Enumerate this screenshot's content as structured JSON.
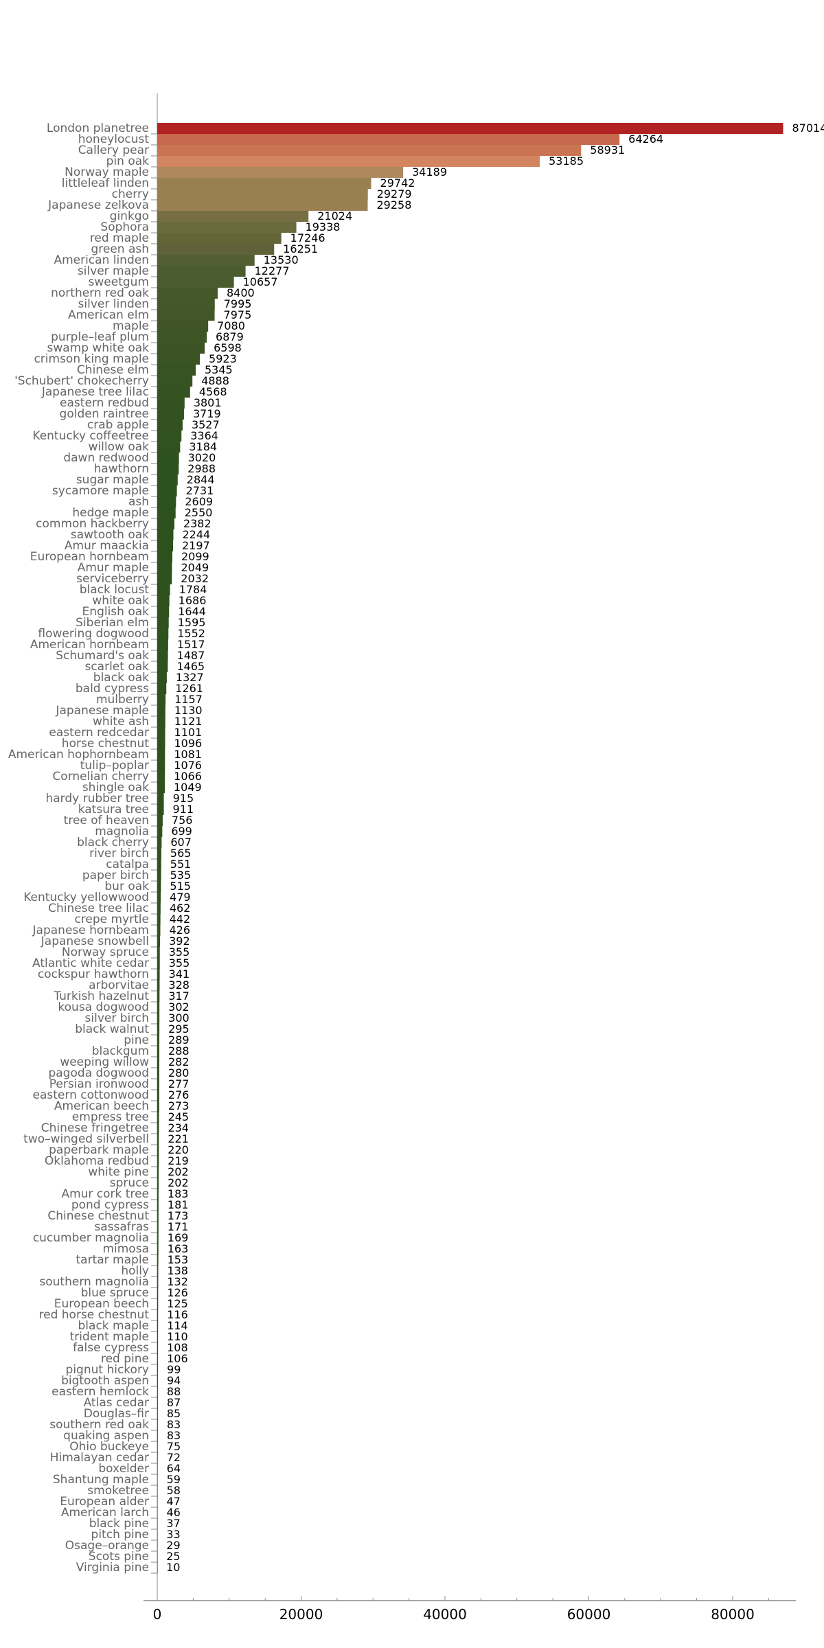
{
  "chart_data": {
    "type": "bar",
    "orientation": "horizontal",
    "title": "",
    "xlabel": "",
    "ylabel": "",
    "xlim": [
      0,
      88000
    ],
    "x_ticks": [
      0,
      20000,
      40000,
      60000,
      80000
    ],
    "x_tick_labels": [
      "0",
      "20000",
      "40000",
      "60000",
      "80000"
    ],
    "grid": false,
    "data_labels": true,
    "categories": [
      "London planetree",
      "honeylocust",
      "Callery pear",
      "pin oak",
      "Norway maple",
      "littleleaf linden",
      "cherry",
      "Japanese zelkova",
      "ginkgo",
      "Sophora",
      "red maple",
      "green ash",
      "American linden",
      "silver maple",
      "sweetgum",
      "northern red oak",
      "silver linden",
      "American elm",
      "maple",
      "purple–leaf plum",
      "swamp white oak",
      "crimson king maple",
      "Chinese elm",
      "'Schubert' chokecherry",
      "Japanese tree lilac",
      "eastern redbud",
      "golden raintree",
      "crab apple",
      "Kentucky coffeetree",
      "willow oak",
      "dawn redwood",
      "hawthorn",
      "sugar maple",
      "sycamore maple",
      "ash",
      "hedge maple",
      "common hackberry",
      "sawtooth oak",
      "Amur maackia",
      "European hornbeam",
      "Amur maple",
      "serviceberry",
      "black locust",
      "white oak",
      "English oak",
      "Siberian elm",
      "flowering dogwood",
      "American hornbeam",
      "Schumard's oak",
      "scarlet oak",
      "black oak",
      "bald cypress",
      "mulberry",
      "Japanese maple",
      "white ash",
      "eastern redcedar",
      "horse chestnut",
      "American hophornbeam",
      "tulip–poplar",
      "Cornelian cherry",
      "shingle oak",
      "hardy rubber tree",
      "katsura tree",
      "tree of heaven",
      "magnolia",
      "black cherry",
      "river birch",
      "catalpa",
      "paper birch",
      "bur oak",
      "Kentucky yellowwood",
      "Chinese tree lilac",
      "crepe myrtle",
      "Japanese hornbeam",
      "Japanese snowbell",
      "Norway spruce",
      "Atlantic white cedar",
      "cockspur hawthorn",
      "arborvitae",
      "Turkish hazelnut",
      "kousa dogwood",
      "silver birch",
      "black walnut",
      "pine",
      "blackgum",
      "weeping willow",
      "pagoda dogwood",
      "Persian ironwood",
      "eastern cottonwood",
      "American beech",
      "empress tree",
      "Chinese fringetree",
      "two–winged silverbell",
      "paperbark maple",
      "Oklahoma redbud",
      "white pine",
      "spruce",
      "Amur cork tree",
      "pond cypress",
      "Chinese chestnut",
      "sassafras",
      "cucumber magnolia",
      "mimosa",
      "tartar maple",
      "holly",
      "southern magnolia",
      "blue spruce",
      "European beech",
      "red horse chestnut",
      "black maple",
      "trident maple",
      "false cypress",
      "red pine",
      "pignut hickory",
      "bigtooth aspen",
      "eastern hemlock",
      "Atlas cedar",
      "Douglas–fir",
      "southern red oak",
      "quaking aspen",
      "Ohio buckeye",
      "Himalayan cedar",
      "boxelder",
      "Shantung maple",
      "smoketree",
      "European alder",
      "American larch",
      "black pine",
      "pitch pine",
      "Osage–orange",
      "Scots pine",
      "Virginia pine"
    ],
    "values": [
      87014,
      64264,
      58931,
      53185,
      34189,
      29742,
      29279,
      29258,
      21024,
      19338,
      17246,
      16251,
      13530,
      12277,
      10657,
      8400,
      7995,
      7975,
      7080,
      6879,
      6598,
      5923,
      5345,
      4888,
      4568,
      3801,
      3719,
      3527,
      3364,
      3184,
      3020,
      2988,
      2844,
      2731,
      2609,
      2550,
      2382,
      2244,
      2197,
      2099,
      2049,
      2032,
      1784,
      1686,
      1644,
      1595,
      1552,
      1517,
      1487,
      1465,
      1327,
      1261,
      1157,
      1130,
      1121,
      1101,
      1096,
      1081,
      1076,
      1066,
      1049,
      915,
      911,
      756,
      699,
      607,
      565,
      551,
      535,
      515,
      479,
      462,
      442,
      426,
      392,
      355,
      355,
      341,
      328,
      317,
      302,
      300,
      295,
      289,
      288,
      282,
      280,
      277,
      276,
      273,
      245,
      234,
      221,
      220,
      219,
      202,
      202,
      183,
      181,
      173,
      171,
      169,
      163,
      153,
      138,
      132,
      126,
      125,
      116,
      114,
      110,
      108,
      106,
      99,
      94,
      88,
      87,
      85,
      83,
      83,
      75,
      72,
      64,
      59,
      58,
      47,
      46,
      37,
      33,
      29,
      25,
      10
    ],
    "colors": [
      "#B22222",
      "#C6694C",
      "#C97553",
      "#D38560",
      "#AE895E",
      "#9A7F53",
      "#9A7F53",
      "#9A7F53",
      "#766F43",
      "#6B693E",
      "#636539",
      "#5F6238",
      "#535F33",
      "#4B5C2F",
      "#4A5B2D",
      "#45582A",
      "#435729",
      "#425628",
      "#3F5526",
      "#3E5525",
      "#3C5424",
      "#3A5423",
      "#385322",
      "#365322",
      "#355321",
      "#335221",
      "#325220",
      "#315220",
      "#30521F",
      "#30521F"
    ],
    "default_color": "#2E521E",
    "label_color": "#666666",
    "axis_color": "#888888"
  }
}
